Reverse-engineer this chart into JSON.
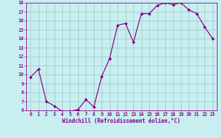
{
  "x": [
    0,
    1,
    2,
    3,
    4,
    5,
    6,
    7,
    8,
    9,
    10,
    11,
    12,
    13,
    14,
    15,
    16,
    17,
    18,
    19,
    20,
    21,
    22,
    23
  ],
  "y": [
    9.7,
    10.6,
    7.0,
    6.5,
    5.9,
    5.9,
    6.1,
    7.2,
    6.4,
    9.8,
    11.8,
    15.5,
    15.7,
    13.6,
    16.8,
    16.8,
    17.7,
    18.0,
    17.8,
    18.0,
    17.2,
    16.8,
    15.3,
    14.0
  ],
  "line_color": "#880088",
  "marker": "D",
  "marker_size": 2.2,
  "bg_color": "#c8eef0",
  "grid_color": "#a0ccc8",
  "xlabel": "Windchill (Refroidissement éolien,°C)",
  "ylim": [
    6,
    18
  ],
  "xlim_min": -0.5,
  "xlim_max": 23.5,
  "yticks": [
    6,
    7,
    8,
    9,
    10,
    11,
    12,
    13,
    14,
    15,
    16,
    17,
    18
  ],
  "xticks": [
    0,
    1,
    2,
    3,
    4,
    5,
    6,
    7,
    8,
    9,
    10,
    11,
    12,
    13,
    14,
    15,
    16,
    17,
    18,
    19,
    20,
    21,
    22,
    23
  ],
  "font_color": "#880088",
  "line_width": 0.9
}
